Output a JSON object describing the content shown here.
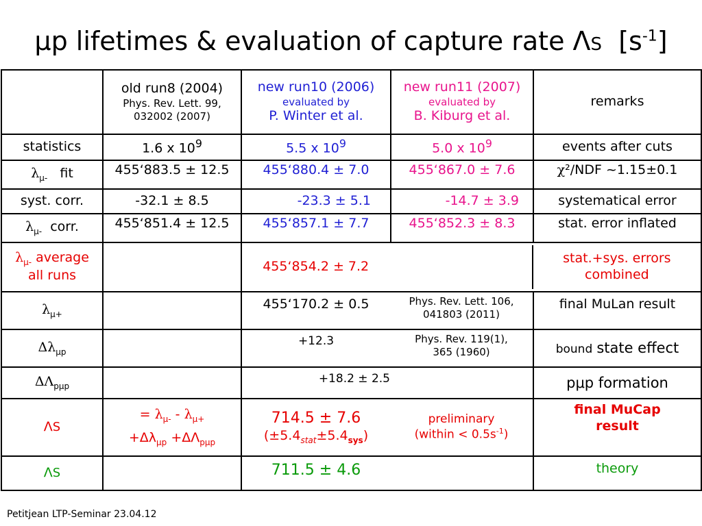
{
  "title": {
    "main": "μp lifetimes & evaluation of capture rate Λ",
    "sub": "S",
    "unit_open": "[s",
    "unit_exp": "-1",
    "unit_close": "]"
  },
  "header": {
    "col1_line1": "old run8 (2004)",
    "col1_line2": "Phys. Rev. Lett. 99,",
    "col1_line3": "032002 (2007)",
    "col2_line1": "new run10 (2006)",
    "col2_line2": "evaluated by",
    "col2_line3": "P. Winter et al.",
    "col3_line1": "new run11 (2007)",
    "col3_line2": "evaluated by",
    "col3_line3": "B. Kiburg et al.",
    "col4": "remarks"
  },
  "rows": {
    "statistics": {
      "label": "statistics",
      "c1_base": "1.6 x 10",
      "c1_exp": "9",
      "c2_base": "5.5 x 10",
      "c2_exp": "9",
      "c3_base": "5.0 x 10",
      "c3_exp": "9",
      "remark": "events after cuts"
    },
    "fit": {
      "label_sym": "λ",
      "label_sub": "μ-",
      "label_text": "fit",
      "c1": "455‘883.5 ± 12.5",
      "c2": "455‘880.4 ± 7.0",
      "c3": "455‘867.0 ± 7.6",
      "remark_sym": "χ",
      "remark_text": "²/NDF ~1.15±0.1"
    },
    "syst": {
      "label": "syst. corr.",
      "c1": "-32.1 ± 8.5",
      "c2": "-23.3 ± 5.1",
      "c3": "-14.7 ± 3.9",
      "remark": "systematical error"
    },
    "corr": {
      "label_sym": "λ",
      "label_sub": "μ-",
      "label_text": "corr.",
      "c1": "455‘851.4 ± 12.5",
      "c2": "455‘857.1 ± 7.7",
      "c3": "455‘852.3 ± 8.3",
      "remark": "stat. error inflated"
    },
    "average": {
      "label_sym": "λ",
      "label_sub": "μ-",
      "label_text1": "average",
      "label_text2": "all runs",
      "value": "455‘854.2 ± 7.2",
      "remark1": "stat.+sys. errors",
      "remark2": "combined"
    },
    "mulan": {
      "label_sym": "λ",
      "label_sub": "μ+",
      "value": "455‘170.2 ± 0.5",
      "ref1": "Phys. Rev. Lett. 106,",
      "ref2": "041803 (2011)",
      "remark": "final MuLan result"
    },
    "bound": {
      "label_sym": "Δλ",
      "label_sub": "μp",
      "value": "+12.3",
      "ref1": "Phys. Rev. 119(1),",
      "ref2": "365 (1960)",
      "remark_small": "bound",
      "remark_big": "state effect"
    },
    "ppmu": {
      "label_sym": "ΔΛ",
      "label_sub": "pμp",
      "value": "+18.2 ± 2.5",
      "remark": "pμp formation"
    },
    "lambda_s": {
      "label_sym": "Λ",
      "label_sub": "S",
      "formula1_eq": "= ",
      "formula1_l1": "λ",
      "formula1_s1": "μ-",
      "formula1_minus": " - ",
      "formula1_l2": "λ",
      "formula1_s2": "μ+",
      "formula2_p1": "+Δλ",
      "formula2_s1": "μp",
      "formula2_p2": " +ΔΛ",
      "formula2_s2": "pμp",
      "value": "714.5 ± 7.6",
      "err_open": "(±5.4",
      "err_stat": "stat",
      "err_mid": "±5.4",
      "err_sys": "sys",
      "err_close": ")",
      "prelim1": "preliminary",
      "prelim2_a": "(within < 0.5s",
      "prelim2_exp": "-1",
      "prelim2_b": ")",
      "remark1": "final MuCap",
      "remark2": "result"
    },
    "theory": {
      "label_sym": "Λ",
      "label_sub": "S",
      "value": "711.5 ± 4.6",
      "remark": "theory"
    }
  },
  "footer": "Petitjean LTP-Seminar 23.04.12",
  "colors": {
    "blue": "#1f1fd4",
    "pink": "#e8148c",
    "red": "#e60000",
    "green": "#0a9a0a"
  }
}
